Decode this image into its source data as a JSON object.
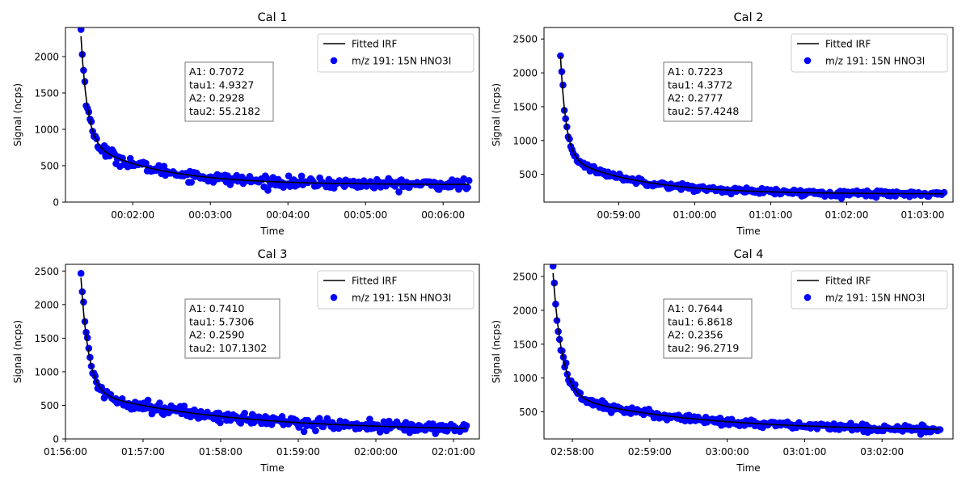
{
  "colors": {
    "points": "#0000ff",
    "fit": "#000000",
    "axes": "#000000"
  },
  "chart_data": [
    {
      "type": "scatter",
      "title": "Cal 1",
      "xlabel": "Time",
      "ylabel": "Signal (ncps)",
      "x_ticks": [
        "00:02:00",
        "00:03:00",
        "00:04:00",
        "00:05:00",
        "00:06:00"
      ],
      "x_tick_seconds": [
        120,
        180,
        240,
        300,
        360
      ],
      "xlim": [
        "00:01:08",
        "00:06:28"
      ],
      "xlim_seconds": [
        68,
        388
      ],
      "y_ticks": [
        0,
        500,
        1000,
        1500,
        2000
      ],
      "ylim": [
        0,
        2400
      ],
      "t_start": "00:01:20",
      "t_start_seconds": 80,
      "t_end": "00:06:20",
      "t_end_seconds": 380,
      "fit_params": {
        "A1": 0.7072,
        "tau1": 4.9327,
        "A2": 0.2928,
        "tau2": 55.2182
      },
      "start_signal": 2280,
      "baseline": 240,
      "params_text": [
        "A1: 0.7072",
        "tau1: 4.9327",
        "A2: 0.2928",
        "tau2: 55.2182"
      ],
      "legend": [
        "Fitted IRF",
        "m/z 191: 15N HNO3I"
      ],
      "legend_position": "top-right",
      "n_points": 300,
      "noise": 35
    },
    {
      "type": "scatter",
      "title": "Cal 2",
      "xlabel": "Time",
      "ylabel": "Signal (ncps)",
      "x_ticks": [
        "00:59:00",
        "01:00:00",
        "01:01:00",
        "01:02:00",
        "01:03:00"
      ],
      "x_tick_seconds": [
        3540,
        3600,
        3660,
        3720,
        3780
      ],
      "xlim": [
        "00:58:01",
        "01:03:24"
      ],
      "xlim_seconds": [
        3481,
        3804
      ],
      "y_ticks": [
        500,
        1000,
        1500,
        2000,
        2500
      ],
      "ylim": [
        90,
        2670
      ],
      "t_start": "00:58:14",
      "t_start_seconds": 3494,
      "t_end": "01:03:17",
      "t_end_seconds": 3797,
      "fit_params": {
        "A1": 0.7223,
        "tau1": 4.3772,
        "A2": 0.2777,
        "tau2": 57.4248
      },
      "start_signal": 2250,
      "baseline": 210,
      "params_text": [
        "A1: 0.7223",
        "tau1: 4.3772",
        "A2: 0.2777",
        "tau2: 57.4248"
      ],
      "legend": [
        "Fitted IRF",
        "m/z 191: 15N HNO3I"
      ],
      "legend_position": "top-right",
      "n_points": 300,
      "noise": 22
    },
    {
      "type": "scatter",
      "title": "Cal 3",
      "xlabel": "Time",
      "ylabel": "Signal (ncps)",
      "x_ticks": [
        "01:56:00",
        "01:57:00",
        "01:58:00",
        "01:59:00",
        "02:00:00",
        "02:01:00"
      ],
      "x_tick_seconds": [
        7020,
        7080,
        7140,
        7200,
        7260,
        7320
      ],
      "xlim": [
        "01:56:00",
        "02:01:20"
      ],
      "xlim_seconds": [
        7020,
        7340
      ],
      "y_ticks": [
        0,
        500,
        1000,
        1500,
        2000,
        2500
      ],
      "ylim": [
        0,
        2600
      ],
      "t_start": "01:56:12",
      "t_start_seconds": 7032,
      "t_end": "02:01:10",
      "t_end_seconds": 7330,
      "fit_params": {
        "A1": 0.741,
        "tau1": 5.7306,
        "A2": 0.259,
        "tau2": 107.1302
      },
      "start_signal": 2400,
      "baseline": 120,
      "params_text": [
        "A1: 0.7410",
        "tau1: 5.7306",
        "A2: 0.2590",
        "tau2: 107.1302"
      ],
      "legend": [
        "Fitted IRF",
        "m/z 191: 15N HNO3I"
      ],
      "legend_position": "top-right",
      "n_points": 300,
      "noise": 40
    },
    {
      "type": "scatter",
      "title": "Cal 4",
      "xlabel": "Time",
      "ylabel": "Signal (ncps)",
      "x_ticks": [
        "02:58:00",
        "02:59:00",
        "03:00:00",
        "03:01:00",
        "03:02:00"
      ],
      "x_tick_seconds": [
        10680,
        10740,
        10800,
        10860,
        10920
      ],
      "xlim": [
        "02:57:38",
        "03:02:55"
      ],
      "xlim_seconds": [
        10658,
        10975
      ],
      "y_ticks": [
        500,
        1000,
        1500,
        2000,
        2500
      ],
      "ylim": [
        100,
        2680
      ],
      "t_start": "02:57:45",
      "t_start_seconds": 10665,
      "t_end": "03:02:45",
      "t_end_seconds": 10965,
      "fit_params": {
        "A1": 0.7644,
        "tau1": 6.8618,
        "A2": 0.2356,
        "tau2": 96.2719
      },
      "start_signal": 2550,
      "baseline": 220,
      "params_text": [
        "A1: 0.7644",
        "tau1: 6.8618",
        "A2: 0.2356",
        "tau2: 96.2719"
      ],
      "legend": [
        "Fitted IRF",
        "m/z 191: 15N HNO3I"
      ],
      "legend_position": "top-right",
      "n_points": 300,
      "noise": 28
    }
  ]
}
